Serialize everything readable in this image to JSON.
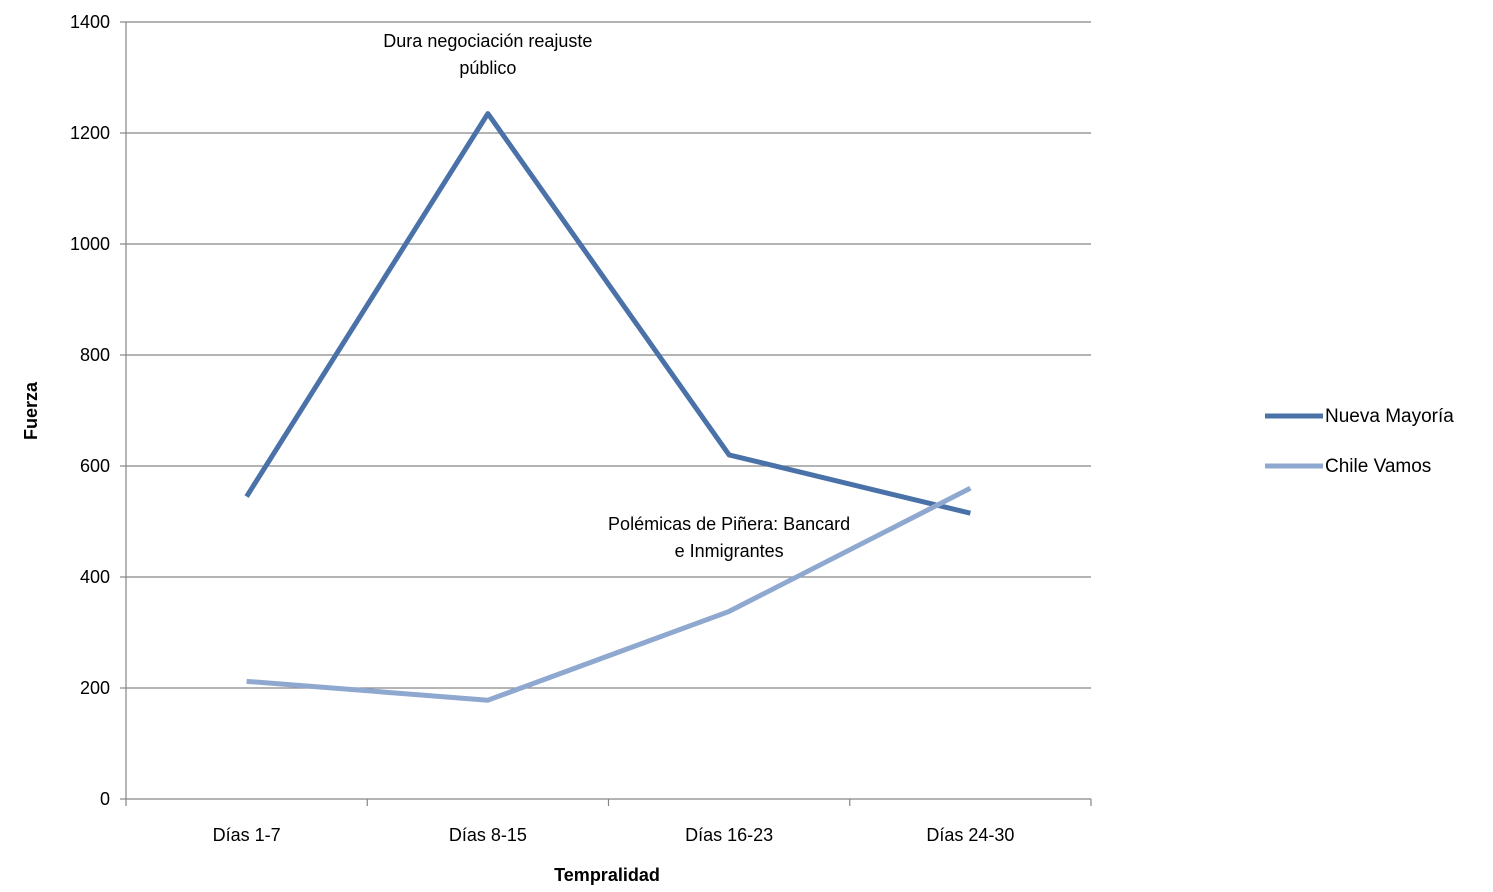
{
  "chart_data": {
    "type": "line",
    "title": "",
    "xlabel": "Tempralidad",
    "ylabel": "Fuerza",
    "categories": [
      "Días 1-7",
      "Días 8-15",
      "Días 16-23",
      "Días 24-30"
    ],
    "ylim": [
      0,
      1400
    ],
    "yticks": [
      0,
      200,
      400,
      600,
      800,
      1000,
      1200,
      1400
    ],
    "grid": true,
    "legend_position": "right",
    "series": [
      {
        "name": "Nueva Mayoría",
        "color": "#4a72a8",
        "values": [
          545,
          1235,
          620,
          515
        ]
      },
      {
        "name": "Chile Vamos",
        "color": "#8fa8d0",
        "values": [
          212,
          178,
          338,
          560
        ]
      }
    ],
    "annotations": [
      {
        "lines": [
          "Dura negociación reajuste",
          "público"
        ],
        "x_category": 1,
        "y": 1355
      },
      {
        "lines": [
          "Polémicas de Piñera: Bancard",
          "e Inmigrantes"
        ],
        "x_category": 2,
        "y": 485
      }
    ]
  }
}
